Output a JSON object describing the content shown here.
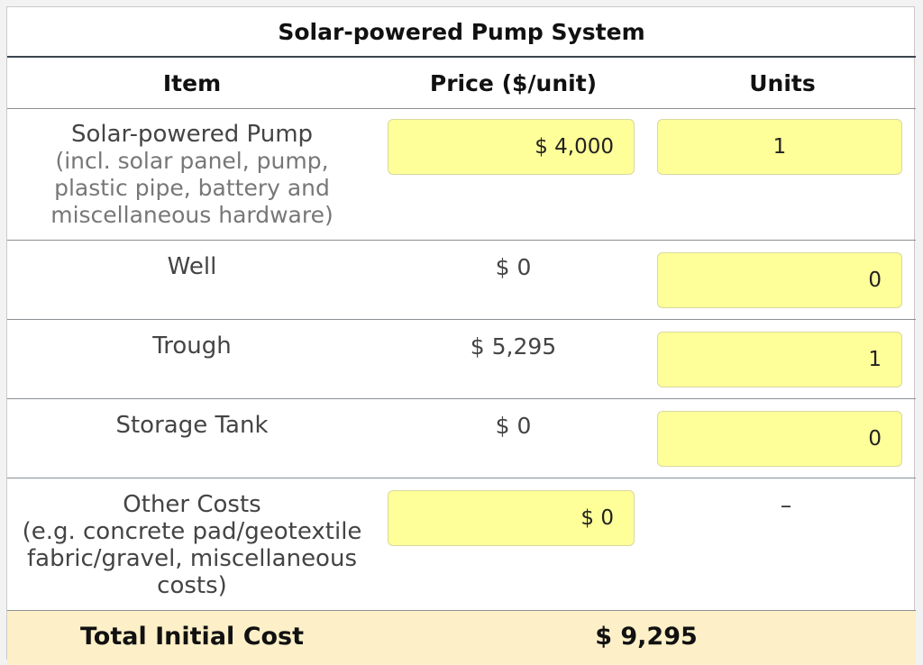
{
  "table": {
    "title": "Solar-powered Pump System",
    "headers": {
      "item": "Item",
      "price": "Price ($/unit)",
      "units": "Units"
    },
    "rows": [
      {
        "item": "Solar-powered Pump",
        "detail_lines": [
          "(incl. solar panel, pump,",
          "plastic pipe, battery and",
          "miscellaneous hardware)"
        ],
        "price": "$ 4,000",
        "units": "1"
      },
      {
        "item": "Well",
        "price": "$ 0",
        "units": "0"
      },
      {
        "item": "Trough",
        "price": "$ 5,295",
        "units": "1"
      },
      {
        "item": "Storage Tank",
        "price": "$ 0",
        "units": "0"
      },
      {
        "item": "Other Costs",
        "detail_lines": [
          "(e.g. concrete pad/geotextile",
          "fabric/gravel, miscellaneous",
          "costs)"
        ],
        "price": "$ 0",
        "units": "–"
      }
    ],
    "total": {
      "label": "Total Initial Cost",
      "value": "$ 9,295"
    }
  },
  "colors": {
    "input_background": "#ffff99",
    "total_background": "#fdf0c8",
    "header_rule": "#3c4550"
  }
}
